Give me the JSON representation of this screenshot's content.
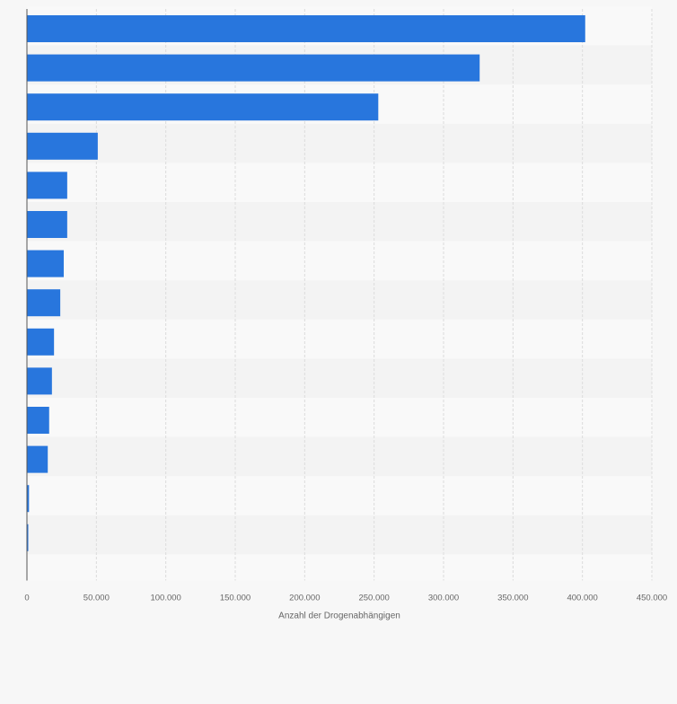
{
  "chart_data": {
    "type": "bar",
    "orientation": "horizontal",
    "categories": [
      "",
      "",
      "",
      "",
      "",
      "",
      "",
      "",
      "",
      "",
      "",
      "",
      "",
      ""
    ],
    "values": [
      402000,
      326000,
      253000,
      51000,
      29000,
      29000,
      26500,
      24000,
      19500,
      18000,
      16000,
      15000,
      1500,
      800
    ],
    "xlabel": "Anzahl der Drogenabhängigen",
    "ylabel": "",
    "xlim": [
      0,
      450000
    ],
    "ticks": [
      0,
      50000,
      100000,
      150000,
      200000,
      250000,
      300000,
      350000,
      400000,
      450000
    ],
    "tick_labels": [
      "0",
      "50.000",
      "100.000",
      "150.000",
      "200.000",
      "250.000",
      "300.000",
      "350.000",
      "400.000",
      "450.000"
    ],
    "grid": true,
    "colors": {
      "bar": "#2876dd",
      "band_light": "#f9f9f9",
      "band_dark": "#f3f3f3",
      "grid": "#dcdcdc",
      "axis": "#555555",
      "text": "#666666",
      "background": "#f7f7f7"
    }
  }
}
